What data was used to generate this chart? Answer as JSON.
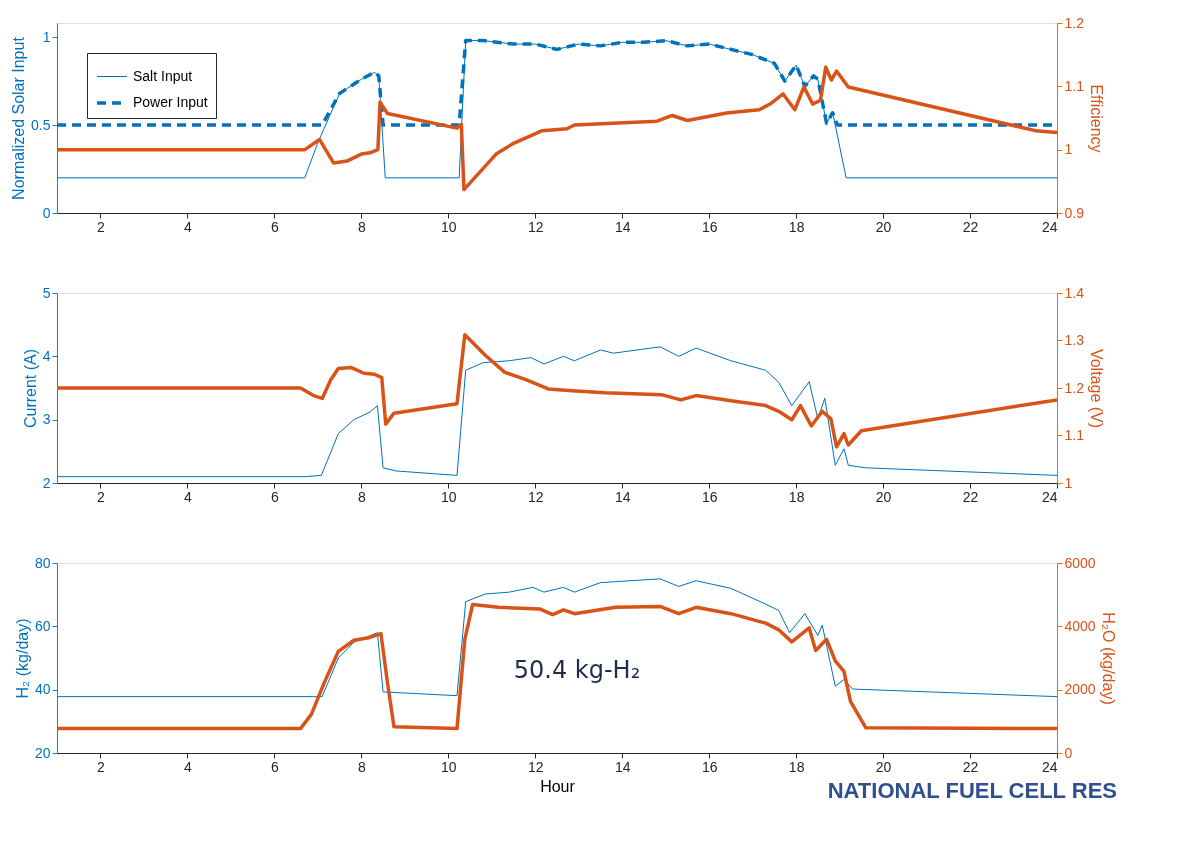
{
  "chart_data": [
    {
      "type": "line",
      "ylabel": "Normalized Solar Input",
      "y2label": "Efficiency",
      "xlim": [
        1,
        24
      ],
      "xticks": [
        2,
        4,
        6,
        8,
        10,
        12,
        14,
        16,
        18,
        20,
        22,
        24
      ],
      "ylim": [
        0,
        1.08
      ],
      "yticks": [
        0,
        0.5,
        1
      ],
      "y2lim": [
        0.9,
        1.2
      ],
      "y2ticks": [
        0.9,
        1,
        1.1,
        1.2
      ],
      "grid": false,
      "legend": "top left",
      "series": [
        {
          "name": "Salt Input",
          "color": "#0072bd",
          "line_style": "solid",
          "x": [
            1,
            6.7,
            7.0,
            7.5,
            8.0,
            8.3,
            8.4,
            8.55,
            10.25,
            10.4,
            10.8,
            11.5,
            12.0,
            12.5,
            13.0,
            13.5,
            14.0,
            14.5,
            15.0,
            15.5,
            16.0,
            16.5,
            17.0,
            17.5,
            17.74,
            18.0,
            18.2,
            18.4,
            18.5,
            18.7,
            18.84,
            19.15,
            24
          ],
          "values": [
            0.2,
            0.2,
            0.4,
            0.68,
            0.76,
            0.8,
            0.78,
            0.2,
            0.2,
            0.98,
            0.98,
            0.96,
            0.96,
            0.93,
            0.96,
            0.95,
            0.97,
            0.97,
            0.98,
            0.95,
            0.96,
            0.93,
            0.9,
            0.85,
            0.75,
            0.84,
            0.72,
            0.78,
            0.76,
            0.51,
            0.57,
            0.2,
            0.2
          ]
        },
        {
          "name": "Power Input",
          "color": "#0072bd",
          "line_style": "dashed",
          "x": [
            1,
            7.1,
            7.5,
            8.0,
            8.3,
            8.4,
            8.5,
            10.25,
            10.4,
            10.8,
            11.5,
            12.0,
            12.5,
            13.0,
            13.5,
            14.0,
            14.5,
            15.0,
            15.5,
            16.0,
            16.5,
            17.0,
            17.5,
            17.74,
            18.0,
            18.2,
            18.4,
            18.5,
            18.7,
            18.84,
            18.95,
            24
          ],
          "values": [
            0.5,
            0.5,
            0.68,
            0.76,
            0.8,
            0.78,
            0.5,
            0.5,
            0.98,
            0.98,
            0.96,
            0.96,
            0.93,
            0.96,
            0.95,
            0.97,
            0.97,
            0.98,
            0.95,
            0.96,
            0.93,
            0.9,
            0.85,
            0.75,
            0.84,
            0.72,
            0.78,
            0.76,
            0.51,
            0.57,
            0.5,
            0.5
          ]
        },
        {
          "color": "#d95319",
          "line_style": "solid",
          "axis": "y2",
          "x": [
            1,
            6.7,
            7.04,
            7.36,
            7.67,
            8.0,
            8.2,
            8.38,
            8.43,
            8.6,
            10.2,
            10.3,
            10.36,
            11.1,
            11.5,
            12.16,
            12.73,
            12.9,
            14.8,
            15.15,
            15.5,
            16.4,
            17.15,
            17.4,
            17.7,
            17.97,
            18.18,
            18.38,
            18.56,
            18.68,
            18.81,
            18.93,
            19.2,
            23.5,
            24
          ],
          "values": [
            1.0,
            1.0,
            1.016,
            0.979,
            0.982,
            0.993,
            0.995,
            1.0,
            1.075,
            1.057,
            1.034,
            1.04,
            0.937,
            0.993,
            1.01,
            1.03,
            1.033,
            1.039,
            1.045,
            1.054,
            1.046,
            1.058,
            1.063,
            1.072,
            1.088,
            1.063,
            1.099,
            1.072,
            1.078,
            1.13,
            1.11,
            1.124,
            1.099,
            1.03,
            1.027
          ]
        }
      ]
    },
    {
      "type": "line",
      "ylabel": "Current (A)",
      "y2label": "Voltage (V)",
      "xlim": [
        1,
        24
      ],
      "xticks": [
        2,
        4,
        6,
        8,
        10,
        12,
        14,
        16,
        18,
        20,
        22,
        24
      ],
      "ylim": [
        2,
        5
      ],
      "yticks": [
        2,
        3,
        4,
        5
      ],
      "y2lim": [
        1,
        1.4
      ],
      "y2ticks": [
        1,
        1.1,
        1.2,
        1.3,
        1.4
      ],
      "grid": false,
      "series": [
        {
          "color": "#0072bd",
          "line_style": "solid",
          "x": [
            1,
            6.7,
            7.08,
            7.47,
            7.83,
            8.2,
            8.37,
            8.5,
            8.8,
            10.2,
            10.4,
            10.8,
            11.4,
            11.9,
            12.2,
            12.65,
            12.9,
            13.5,
            13.8,
            14.87,
            15.3,
            15.7,
            16.5,
            17.3,
            17.6,
            17.9,
            18.3,
            18.5,
            18.66,
            18.9,
            19.1,
            19.2,
            19.6,
            24
          ],
          "values": [
            2.1,
            2.1,
            2.12,
            2.78,
            3.0,
            3.12,
            3.22,
            2.24,
            2.19,
            2.12,
            3.78,
            3.9,
            3.93,
            3.98,
            3.88,
            4.0,
            3.93,
            4.1,
            4.05,
            4.15,
            4.0,
            4.13,
            3.93,
            3.78,
            3.59,
            3.22,
            3.6,
            3.01,
            3.34,
            2.28,
            2.54,
            2.28,
            2.24,
            2.12
          ]
        },
        {
          "color": "#d95319",
          "line_style": "solid",
          "axis": "y2",
          "x": [
            1,
            6.6,
            6.9,
            7.1,
            7.3,
            7.47,
            7.77,
            8.06,
            8.3,
            8.47,
            8.56,
            8.75,
            10.2,
            10.38,
            10.85,
            11.3,
            11.77,
            12.3,
            12.85,
            13.6,
            14.9,
            15.35,
            15.7,
            16.5,
            17.3,
            17.6,
            17.9,
            18.1,
            18.35,
            18.6,
            18.8,
            18.93,
            19.1,
            19.2,
            19.5,
            24
          ],
          "values": [
            1.2,
            1.2,
            1.184,
            1.178,
            1.218,
            1.241,
            1.243,
            1.231,
            1.229,
            1.222,
            1.124,
            1.147,
            1.167,
            1.312,
            1.269,
            1.233,
            1.218,
            1.198,
            1.194,
            1.19,
            1.186,
            1.175,
            1.184,
            1.173,
            1.163,
            1.151,
            1.133,
            1.163,
            1.12,
            1.151,
            1.135,
            1.076,
            1.104,
            1.08,
            1.11,
            1.175
          ]
        }
      ]
    },
    {
      "type": "line",
      "xlabel": "Hour",
      "ylabel": "H₂ (kg/day)",
      "y2label": "H₂O (kg/day)",
      "xlim": [
        1,
        24
      ],
      "xticks": [
        2,
        4,
        6,
        8,
        10,
        12,
        14,
        16,
        18,
        20,
        22,
        24
      ],
      "ylim": [
        20,
        80
      ],
      "yticks": [
        20,
        40,
        60,
        80
      ],
      "y2lim": [
        0,
        6000
      ],
      "y2ticks": [
        0,
        2000,
        4000,
        6000
      ],
      "grid": false,
      "annotations": [
        "50.4 kg-H₂",
        "NATIONAL FUEL CELL RES"
      ],
      "series": [
        {
          "color": "#0072bd",
          "line_style": "solid",
          "x": [
            1,
            6.9,
            7.1,
            7.47,
            7.83,
            8.37,
            8.5,
            10.2,
            10.4,
            10.85,
            11.4,
            11.95,
            12.2,
            12.65,
            12.9,
            13.5,
            14.87,
            15.3,
            15.7,
            16.5,
            17.3,
            17.6,
            17.85,
            18.2,
            18.5,
            18.6,
            18.9,
            19.1,
            19.3,
            24
          ],
          "values": [
            37.8,
            37.8,
            37.8,
            50,
            55,
            58,
            39.3,
            38.1,
            67.8,
            70.2,
            70.8,
            72.3,
            70.8,
            72.3,
            70.8,
            73.8,
            75,
            72.6,
            74.4,
            72,
            67,
            65,
            58,
            64,
            57.1,
            60.4,
            41.1,
            43.2,
            40.2,
            37.8
          ]
        },
        {
          "color": "#d95319",
          "line_style": "solid",
          "axis": "y2",
          "x": [
            1,
            6.6,
            6.85,
            7.15,
            7.47,
            7.83,
            8.2,
            8.45,
            8.6,
            8.75,
            10.2,
            10.38,
            10.56,
            11.15,
            12.1,
            12.4,
            12.65,
            12.9,
            13.85,
            14.87,
            15.3,
            15.7,
            16.5,
            17.3,
            17.6,
            17.9,
            18.3,
            18.45,
            18.7,
            18.9,
            19.1,
            19.25,
            19.6,
            24
          ],
          "values": [
            770,
            770,
            1220,
            2230,
            3210,
            3560,
            3650,
            3770,
            2230,
            830,
            770,
            3590,
            4690,
            4600,
            4550,
            4370,
            4520,
            4400,
            4600,
            4630,
            4400,
            4600,
            4400,
            4100,
            3890,
            3510,
            3950,
            3240,
            3590,
            2910,
            2580,
            1630,
            800,
            770
          ]
        }
      ]
    }
  ]
}
